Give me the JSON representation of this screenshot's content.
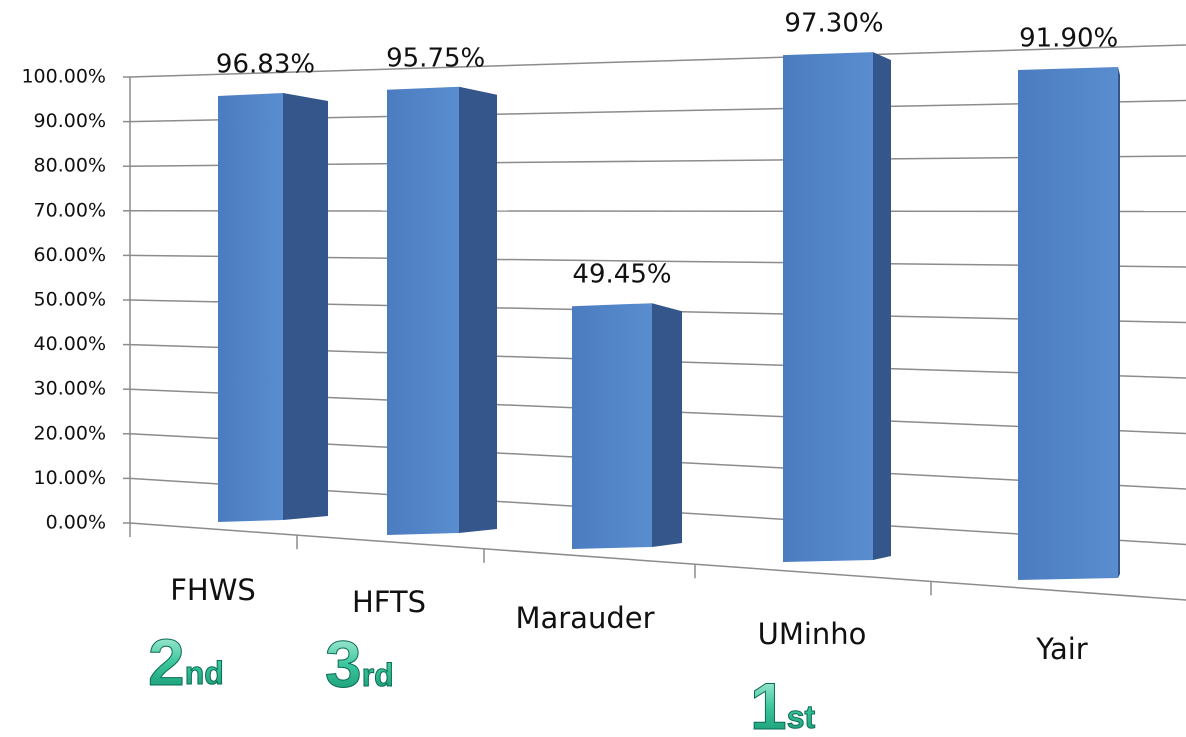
{
  "chart_data": {
    "type": "bar3d",
    "categories": [
      "FHWS",
      "HFTS",
      "Marauder",
      "UMinho",
      "Yair"
    ],
    "values": [
      96.83,
      95.75,
      49.45,
      97.3,
      91.9
    ],
    "value_labels": [
      "96.83%",
      "95.75%",
      "49.45%",
      "97.30%",
      "91.90%"
    ],
    "color": "#4f81bd",
    "ylim": [
      0,
      100
    ],
    "yticks": [
      {
        "value": 0,
        "label": "0.00%"
      },
      {
        "value": 10,
        "label": "10.00%"
      },
      {
        "value": 20,
        "label": "20.00%"
      },
      {
        "value": 30,
        "label": "30.00%"
      },
      {
        "value": 40,
        "label": "40.00%"
      },
      {
        "value": 50,
        "label": "50.00%"
      },
      {
        "value": 60,
        "label": "60.00%"
      },
      {
        "value": 70,
        "label": "70.00%"
      },
      {
        "value": 80,
        "label": "80.00%"
      },
      {
        "value": 90,
        "label": "90.00%"
      },
      {
        "value": 100,
        "label": "100.00%"
      }
    ],
    "grid": true,
    "annotations": [
      "2nd",
      "3rd",
      "1st"
    ]
  }
}
